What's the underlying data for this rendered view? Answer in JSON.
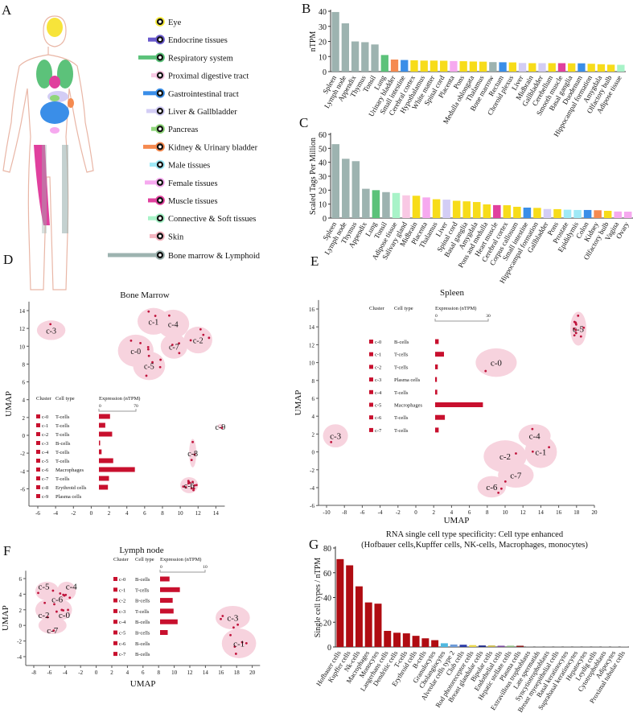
{
  "panel_letters": [
    "A",
    "B",
    "C",
    "D",
    "E",
    "F",
    "G"
  ],
  "colors": {
    "lymphoid": "#9db3b0",
    "lung": "#5cc27a",
    "urinary": "#f58a50",
    "gi": "#3a8ee8",
    "brain": "#f7dc1a",
    "female": "#f6a9ef",
    "liver": "#d3cdf5",
    "muscle": "#e0409e",
    "connective": "#a8f3c8",
    "proximal": "#f9c8e4",
    "male": "#9fe9f6",
    "cluster_fill": "#f7d3de",
    "cell_dot": "#c0143c",
    "expression_bar": "#c8102e",
    "enhanced": "#b00c12"
  },
  "panel_a": {
    "legend": [
      {
        "label": "Eye",
        "color": "#f7ea3a",
        "icon": "eye-icon"
      },
      {
        "label": "Endocrine tissues",
        "color": "#6a5acd",
        "icon": "endocrine-icon"
      },
      {
        "label": "Respiratory system",
        "color": "#5cc27a",
        "icon": "lungs-icon"
      },
      {
        "label": "Proximal digestive tract",
        "color": "#f9c8e4",
        "icon": "mouth-icon"
      },
      {
        "label": "Gastrointestinal tract",
        "color": "#3a8ee8",
        "icon": "intestine-icon"
      },
      {
        "label": "Liver & Gallbladder",
        "color": "#d3cdf5",
        "icon": "liver-icon"
      },
      {
        "label": "Pancreas",
        "color": "#8fd67a",
        "icon": "pancreas-icon"
      },
      {
        "label": "Kidney & Urinary bladder",
        "color": "#f58a50",
        "icon": "kidney-icon"
      },
      {
        "label": "Male tissues",
        "color": "#9fe9f6",
        "icon": "male-icon"
      },
      {
        "label": "Female tissues",
        "color": "#f6a9ef",
        "icon": "female-icon"
      },
      {
        "label": "Muscle tissues",
        "color": "#e0409e",
        "icon": "muscle-icon"
      },
      {
        "label": "Connective  & Soft tissues",
        "color": "#a8f3c8",
        "icon": "connective-tissue-icon"
      },
      {
        "label": "Skin",
        "color": "#f5b5c0",
        "icon": "skin-icon"
      },
      {
        "label": "Bone marrow & Lymphoid",
        "color": "#9db3b0",
        "icon": "bone-marrow-icon"
      }
    ]
  },
  "chart_data": [
    {
      "panel": "B",
      "type": "bar",
      "ylabel": "nTPM",
      "ylim": [
        0,
        40
      ],
      "yticks": [
        0,
        10,
        20,
        30,
        40
      ],
      "categories": [
        "Spleen",
        "Lymph node",
        "Appendix",
        "Thymus",
        "Tonsil",
        "Lung",
        "Urinary bladder",
        "Small intestine",
        "Cerebral cortex",
        "Hypothalamus",
        "White matter",
        "Spinal cord",
        "Placenta",
        "Pons",
        "Medulla oblongata",
        "Thalamus",
        "Bone marrow",
        "Rectum",
        "Choroid plexus",
        "Liver",
        "Midbrain",
        "Gallbladder",
        "Cerebellum",
        "Smooth muscle",
        "Basal ganglia",
        "Duodenum",
        "Hippocampal formation",
        "Amygdala",
        "Olfactory bulb",
        "Adipose tissue"
      ],
      "values": [
        39.5,
        32,
        20,
        19.5,
        18,
        11,
        8,
        7.7,
        7.5,
        7.3,
        7.3,
        7.2,
        7,
        6.9,
        6.7,
        6.6,
        6.3,
        6.2,
        6.1,
        5.7,
        5.6,
        5.6,
        5.6,
        5.6,
        5.5,
        5.5,
        5.2,
        4.9,
        4.6,
        4.5
      ],
      "bar_colors": [
        "lymphoid",
        "lymphoid",
        "lymphoid",
        "lymphoid",
        "lymphoid",
        "lung",
        "urinary",
        "gi",
        "brain",
        "brain",
        "brain",
        "brain",
        "female",
        "brain",
        "brain",
        "brain",
        "lymphoid",
        "gi",
        "brain",
        "liver",
        "brain",
        "liver",
        "brain",
        "muscle",
        "brain",
        "gi",
        "brain",
        "brain",
        "brain",
        "connective"
      ]
    },
    {
      "panel": "C",
      "type": "bar",
      "ylabel": "Scaled Tags Per Million",
      "ylim": [
        0,
        60
      ],
      "yticks": [
        0,
        10,
        20,
        30,
        40,
        50,
        60
      ],
      "categories": [
        "Spleen",
        "Lymph node",
        "Thymus",
        "Appendix",
        "Lung",
        "Tonsil",
        "Adipose tissue",
        "Salivary gland",
        "Midbrain",
        "Placenta",
        "Thalamus",
        "Liver",
        "Spinal cord",
        "Basal ganglia",
        "Amygdala",
        "Pons and medulla",
        "Heart muscle",
        "Cerebral cortex",
        "Corpus callosum",
        "Small intestine",
        "Hippocampal formation",
        "Gallbladder",
        "Pons",
        "Prostate",
        "Epididymis",
        "Colon",
        "Kidney",
        "Olfactory bulb",
        "Vagina",
        "Ovary"
      ],
      "values": [
        53,
        42.5,
        40.8,
        21,
        20,
        18.6,
        18,
        16.3,
        16,
        14.8,
        13.5,
        13.2,
        12.4,
        12,
        11.5,
        9.8,
        9.3,
        9.2,
        8.1,
        7.5,
        7.3,
        6.5,
        6.4,
        6,
        5.8,
        5.8,
        5.6,
        5.2,
        4.7,
        4.6
      ],
      "bar_colors": [
        "lymphoid",
        "lymphoid",
        "lymphoid",
        "lymphoid",
        "lung",
        "lymphoid",
        "connective",
        "proximal",
        "brain",
        "female",
        "brain",
        "liver",
        "brain",
        "brain",
        "brain",
        "brain",
        "muscle",
        "brain",
        "brain",
        "gi",
        "brain",
        "liver",
        "brain",
        "male",
        "male",
        "gi",
        "urinary",
        "brain",
        "female",
        "female"
      ]
    },
    {
      "panel": "D",
      "type": "scatter",
      "title": "Bone Marrow",
      "ylabel": "UMAP",
      "xlabel": "",
      "xlim": [
        -7,
        15
      ],
      "ylim": [
        -7,
        15
      ],
      "xticks": [
        -6,
        -4,
        -2,
        0,
        2,
        4,
        6,
        8,
        10,
        12,
        14
      ],
      "yticks": [
        -6,
        -4,
        -2,
        0,
        2,
        4,
        6,
        8,
        10,
        12,
        14
      ],
      "legend_headers": {
        "cluster": "Cluster",
        "cell_type": "Cell type",
        "expression": "Expression (nTPM)",
        "scale_min": "0",
        "scale_max": "70"
      },
      "expression_max": 70,
      "clusters": [
        {
          "label": "c-0",
          "cell_type": "T-cells",
          "expression": 21,
          "center": [
            5,
            9.5
          ],
          "radius": [
            2,
            1.8
          ]
        },
        {
          "label": "c-1",
          "cell_type": "T-cells",
          "expression": 12,
          "center": [
            7,
            12.8
          ],
          "radius": [
            1.8,
            1.5
          ]
        },
        {
          "label": "c-2",
          "cell_type": "T-cells",
          "expression": 25,
          "center": [
            12,
            10.7
          ],
          "radius": [
            1.6,
            1.5
          ]
        },
        {
          "label": "c-3",
          "cell_type": "B-cells",
          "expression": 2,
          "center": [
            -4.5,
            11.8
          ],
          "radius": [
            1.6,
            1.1
          ]
        },
        {
          "label": "c-4",
          "cell_type": "T-cells",
          "expression": 5,
          "center": [
            9.2,
            12.5
          ],
          "radius": [
            1.8,
            1.6
          ]
        },
        {
          "label": "c-5",
          "cell_type": "T-cells",
          "expression": 27,
          "center": [
            6.5,
            7.8
          ],
          "radius": [
            1.8,
            1.6
          ]
        },
        {
          "label": "c-6",
          "cell_type": "Macrophages",
          "expression": 68,
          "center": [
            11,
            -5.6
          ],
          "radius": [
            1,
            0.9
          ]
        },
        {
          "label": "c-7",
          "cell_type": "T-cells",
          "expression": 19,
          "center": [
            9.3,
            10
          ],
          "radius": [
            1.5,
            1.4
          ]
        },
        {
          "label": "c-8",
          "cell_type": "Erythroid cells",
          "expression": 17,
          "center": [
            11.4,
            -2
          ],
          "radius": [
            0.4,
            1.6
          ]
        },
        {
          "label": "c-9",
          "cell_type": "Plasma cells",
          "expression": 0,
          "center": [
            14.5,
            1
          ],
          "radius": [
            0.3,
            0.3
          ]
        }
      ]
    },
    {
      "panel": "E",
      "type": "scatter",
      "title": "Spleen",
      "ylabel": "UMAP",
      "xlabel": "UMAP",
      "xlim": [
        -11,
        20
      ],
      "ylim": [
        -6,
        17
      ],
      "xticks": [
        -10,
        -8,
        -6,
        -4,
        -2,
        0,
        2,
        4,
        6,
        8,
        10,
        12,
        14,
        16,
        18,
        20
      ],
      "yticks": [
        -6,
        -4,
        -2,
        0,
        2,
        4,
        6,
        8,
        10,
        12,
        14,
        16
      ],
      "legend_headers": {
        "cluster": "Cluster",
        "cell_type": "Cell type",
        "expression": "Expression (nTPM)",
        "scale_min": "0",
        "scale_max": "30"
      },
      "expression_max": 30,
      "clusters": [
        {
          "label": "c-0",
          "cell_type": "B-cells",
          "expression": 2,
          "center": [
            9,
            10
          ],
          "radius": [
            2.3,
            1.6
          ]
        },
        {
          "label": "c-1",
          "cell_type": "T-cells",
          "expression": 5,
          "center": [
            14,
            0
          ],
          "radius": [
            1.8,
            1.8
          ]
        },
        {
          "label": "c-2",
          "cell_type": "T-cells",
          "expression": 1.5,
          "center": [
            10,
            -0.5
          ],
          "radius": [
            2.4,
            1.8
          ]
        },
        {
          "label": "c-3",
          "cell_type": "Plasma cells",
          "expression": 1,
          "center": [
            -9,
            1.8
          ],
          "radius": [
            1.4,
            1.3
          ]
        },
        {
          "label": "c-4",
          "cell_type": "T-cells",
          "expression": 1.2,
          "center": [
            13.3,
            1.8
          ],
          "radius": [
            1.8,
            1.3
          ]
        },
        {
          "label": "c-5",
          "cell_type": "Macrophages",
          "expression": 27,
          "center": [
            18.2,
            13.8
          ],
          "radius": [
            0.9,
            1.9
          ]
        },
        {
          "label": "c-6",
          "cell_type": "T-cells",
          "expression": 5.5,
          "center": [
            8.5,
            -3.9
          ],
          "radius": [
            1.6,
            1.2
          ]
        },
        {
          "label": "c-7",
          "cell_type": "T-cells",
          "expression": 2,
          "center": [
            11.2,
            -2.6
          ],
          "radius": [
            2,
            1.4
          ]
        }
      ]
    },
    {
      "panel": "F",
      "type": "scatter",
      "title": "Lymph node",
      "ylabel": "UMAP",
      "xlabel": "UMAP",
      "xlim": [
        -9,
        21
      ],
      "ylim": [
        -5,
        7
      ],
      "xticks": [
        -8,
        -6,
        -4,
        -2,
        0,
        2,
        4,
        6,
        8,
        10,
        12,
        14,
        16,
        18,
        20
      ],
      "yticks": [
        -4,
        -2,
        0,
        2,
        4,
        6
      ],
      "legend_headers": {
        "cluster": "Cluster",
        "cell_type": "Cell type",
        "expression": "Expression (nTPM)",
        "scale_min": "0",
        "scale_max": "10"
      },
      "expression_max": 10,
      "clusters": [
        {
          "label": "c-0",
          "cell_type": "B-cells",
          "expression": 2.1,
          "center": [
            -4.5,
            2
          ],
          "radius": [
            1.4,
            1.3
          ]
        },
        {
          "label": "c-1",
          "cell_type": "T-cells",
          "expression": 4.4,
          "center": [
            18.3,
            -2.3
          ],
          "radius": [
            2.2,
            1.9
          ]
        },
        {
          "label": "c-2",
          "cell_type": "B-cells",
          "expression": 2.8,
          "center": [
            -6.3,
            2
          ],
          "radius": [
            1.5,
            1.3
          ]
        },
        {
          "label": "c-3",
          "cell_type": "T-cells",
          "expression": 3,
          "center": [
            17.5,
            1
          ],
          "radius": [
            2.2,
            1.5
          ]
        },
        {
          "label": "c-4",
          "cell_type": "B-cells",
          "expression": 3.9,
          "center": [
            -3.8,
            4.4
          ],
          "radius": [
            1.2,
            1.2
          ]
        },
        {
          "label": "c-5",
          "cell_type": "B-cells",
          "expression": 1.7,
          "center": [
            -6.3,
            4.4
          ],
          "radius": [
            1.5,
            1.2
          ]
        },
        {
          "label": "c-6",
          "cell_type": "B-cells",
          "expression": 0,
          "center": [
            -5.2,
            3.6
          ],
          "radius": [
            1.3,
            1.1
          ]
        },
        {
          "label": "c-7",
          "cell_type": "B-cells",
          "expression": 0,
          "center": [
            -5.6,
            0
          ],
          "radius": [
            1.8,
            1.1
          ]
        }
      ]
    },
    {
      "panel": "G",
      "type": "bar",
      "title": "RNA single cell type specificity: Cell type enhanced",
      "subtitle": "(Hofbauer cells,Kupffer cells, NK-cells, Macrophages, monocytes)",
      "ylabel": "Single cell types / nTPM",
      "ylim": [
        0,
        80
      ],
      "yticks": [
        0,
        20,
        40,
        60,
        80
      ],
      "categories": [
        "Hofbauer cells",
        "Kupffer cells",
        "Nk-cells",
        "Macrophages",
        "Monocytes",
        "Langerhans cells",
        "Dendritic cells",
        "T-cells",
        "Erythroid cells",
        "B-cells",
        "Granulocytes",
        "Cholangiocytes",
        "Alveolar cells type 2",
        "Club cells",
        "Rod photoreceptor cells",
        "Breast glandular cells",
        "Bipolar cells",
        "Endothelial cells",
        "Hepatic stellate cells",
        "Plasma cells",
        "Extravillous trophoblasts",
        "Late spermatids",
        "Syncytiotrophoblasts",
        "Breast myoepithelial cells",
        "Basal keratinocytes",
        "Suprabasal keratinocytes",
        "Hepatocytes",
        "Leydig cells",
        "Cytotrophoblasts",
        "Adipocytes",
        "Proximal tubular cells"
      ],
      "values": [
        71,
        66,
        49,
        36,
        35,
        13,
        11.5,
        11,
        9,
        7,
        5.5,
        3,
        2,
        1.8,
        1.5,
        1.2,
        1.2,
        1,
        1,
        1,
        0.4,
        0.4,
        0.4,
        0.4,
        0.4,
        0.4,
        0.4,
        0.4,
        0.3,
        0.3,
        0.3
      ],
      "bar_colors": [
        "#b00c12",
        "#b00c12",
        "#b00c12",
        "#b00c12",
        "#b00c12",
        "#b00c12",
        "#b00c12",
        "#b00c12",
        "#b00c12",
        "#b00c12",
        "#b00c12",
        "#4fb8e0",
        "#6c9ad8",
        "#2a3aa8",
        "#e8d64a",
        "#1f2a8a",
        "#c8b84a",
        "#7a4aa0",
        "#8ab87a",
        "#8a1a1a",
        "#888",
        "#888",
        "#888",
        "#888",
        "#888",
        "#888",
        "#888",
        "#888",
        "#888",
        "#888",
        "#888"
      ]
    }
  ]
}
